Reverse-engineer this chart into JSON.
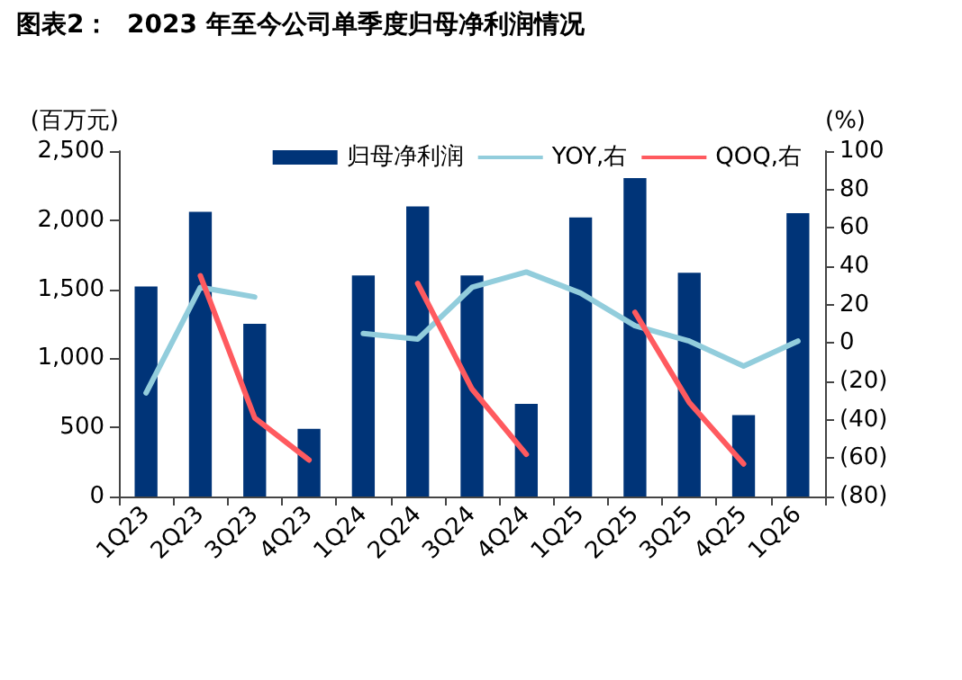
{
  "chart_data": {
    "type": "bar",
    "title": "图表2：  2023 年至今公司单季度归母净利润情况",
    "ylabel": "(百万元)",
    "y2label": "(%)",
    "categories": [
      "1Q23",
      "2Q23",
      "3Q23",
      "4Q23",
      "1Q24",
      "2Q24",
      "3Q24",
      "4Q24",
      "1Q25",
      "2Q25",
      "3Q25",
      "4Q25",
      "1Q26"
    ],
    "series": [
      {
        "name": "归母净利润",
        "color": "#003478",
        "values": [
          1520,
          2060,
          1250,
          490,
          1600,
          2100,
          1600,
          670,
          2020,
          2330,
          1620,
          590,
          2050
        ]
      },
      {
        "name": "YOY,右",
        "type": "line",
        "axis": "y2",
        "color": "#92cddc",
        "values": [
          -26,
          29,
          24,
          null,
          5,
          2,
          29,
          37,
          26,
          9,
          1,
          -12,
          1
        ]
      },
      {
        "name": "QOQ,右",
        "type": "line",
        "axis": "y2",
        "color": "#ff5a5f",
        "values": [
          null,
          35,
          -39,
          -61,
          null,
          31,
          -24,
          -58,
          null,
          16,
          -31,
          -63,
          null
        ]
      }
    ],
    "ylim": [
      0,
      2500
    ],
    "yticks": [
      0,
      500,
      {
        "value": 1000,
        "label": "1,000"
      },
      {
        "value": 1500,
        "label": "1,500"
      },
      {
        "value": 2000,
        "label": "2,000"
      },
      {
        "value": 2500,
        "label": "2,500"
      }
    ],
    "y2lim": [
      -80,
      100
    ],
    "y2ticks": [
      {
        "value": -80,
        "label": "(80)"
      },
      {
        "value": -60,
        "label": "(60)"
      },
      {
        "value": -40,
        "label": "(40)"
      },
      {
        "value": -20,
        "label": "(20)"
      },
      0,
      20,
      40,
      60,
      80,
      100
    ],
    "grid": false,
    "legend": "top right",
    "marker": "none",
    "line_style": "solid"
  }
}
